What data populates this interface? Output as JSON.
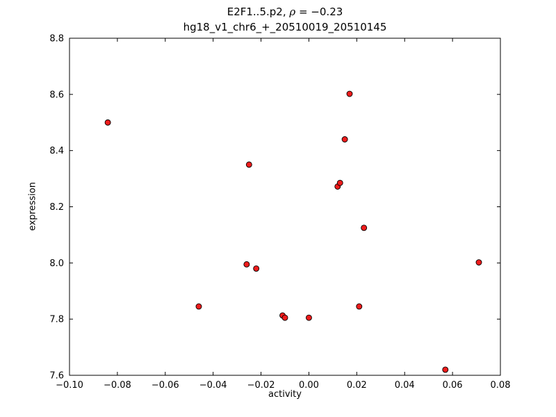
{
  "title": {
    "line1_prefix": "E2F1..5.p2, ",
    "rho_symbol": "ρ",
    "rho_value": " = −0.23",
    "line2": "hg18_v1_chr6_+_20510019_20510145"
  },
  "chart_data": {
    "type": "scatter",
    "title": "E2F1..5.p2, ρ = −0.23\nhg18_v1_chr6_+_20510019_20510145",
    "xlabel": "activity",
    "ylabel": "expression",
    "xlim": [
      -0.1,
      0.08
    ],
    "ylim": [
      7.6,
      8.8
    ],
    "xticks": [
      -0.1,
      -0.08,
      -0.06,
      -0.04,
      -0.02,
      0.0,
      0.02,
      0.04,
      0.06,
      0.08
    ],
    "yticks": [
      7.6,
      7.8,
      8.0,
      8.2,
      8.4,
      8.6,
      8.8
    ],
    "xtick_labels": [
      "−0.10",
      "−0.08",
      "−0.06",
      "−0.04",
      "−0.02",
      "0.00",
      "0.02",
      "0.04",
      "0.06",
      "0.08"
    ],
    "ytick_labels": [
      "7.6",
      "7.8",
      "8.0",
      "8.2",
      "8.4",
      "8.6",
      "8.8"
    ],
    "grid": false,
    "legend": null,
    "marker": {
      "shape": "circle",
      "color": "#ee1c1c",
      "edge_color": "#000000",
      "radius": 4
    },
    "points": [
      [
        -0.084,
        8.5
      ],
      [
        -0.046,
        7.845
      ],
      [
        -0.026,
        7.995
      ],
      [
        -0.022,
        7.98
      ],
      [
        -0.025,
        8.35
      ],
      [
        -0.011,
        7.813
      ],
      [
        -0.01,
        7.805
      ],
      [
        0.0,
        7.805
      ],
      [
        0.012,
        8.272
      ],
      [
        0.013,
        8.285
      ],
      [
        0.015,
        8.44
      ],
      [
        0.017,
        8.602
      ],
      [
        0.021,
        7.845
      ],
      [
        0.023,
        8.125
      ],
      [
        0.057,
        7.62
      ],
      [
        0.071,
        8.002
      ]
    ]
  }
}
